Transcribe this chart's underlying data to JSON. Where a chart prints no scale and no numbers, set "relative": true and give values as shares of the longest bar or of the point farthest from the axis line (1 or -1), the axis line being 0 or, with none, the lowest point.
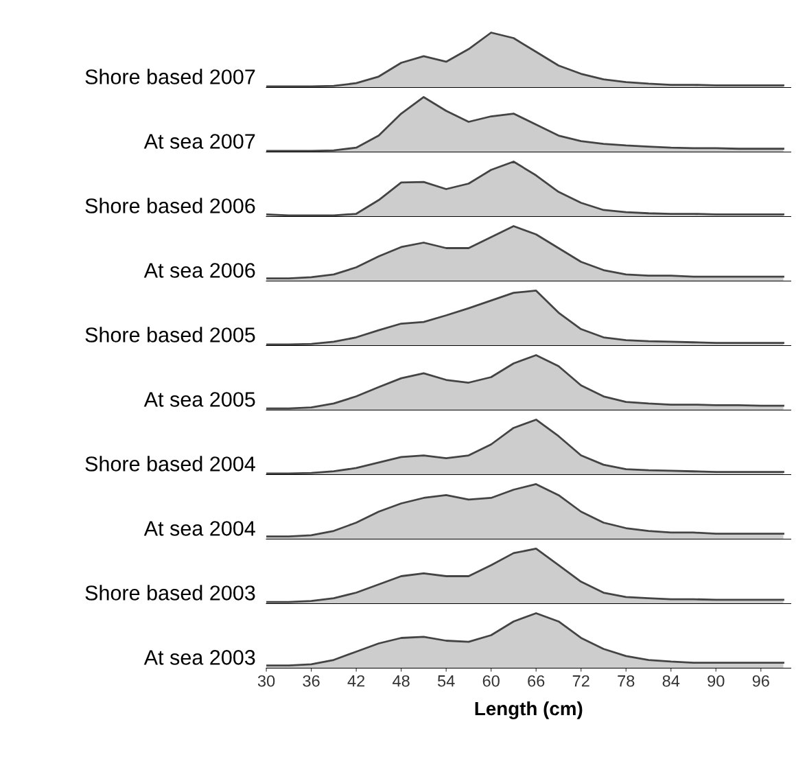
{
  "chart_data": [
    {
      "type": "area",
      "relative": true,
      "ylabel": "Shore based 2007",
      "x": [
        30,
        33,
        36,
        39,
        42,
        45,
        48,
        51,
        54,
        57,
        60,
        63,
        66,
        69,
        72,
        75,
        78,
        81,
        84,
        87,
        90,
        93,
        96,
        99
      ],
      "xlim": [
        30,
        100
      ],
      "tick_labels": false,
      "series": [
        {
          "color": "#c8c8c8",
          "values": [
            0.02,
            0.02,
            0.02,
            0.03,
            0.08,
            0.2,
            0.45,
            0.57,
            0.47,
            0.7,
            1.0,
            0.9,
            0.65,
            0.4,
            0.25,
            0.15,
            0.1,
            0.07,
            0.05,
            0.05,
            0.04,
            0.04,
            0.04,
            0.04
          ]
        }
      ]
    },
    {
      "type": "area",
      "relative": true,
      "ylabel": "At sea 2007",
      "x": [
        30,
        33,
        36,
        39,
        42,
        45,
        48,
        51,
        54,
        57,
        60,
        63,
        66,
        69,
        72,
        75,
        78,
        81,
        84,
        87,
        90,
        93,
        96,
        99
      ],
      "xlim": [
        30,
        100
      ],
      "tick_labels": false,
      "series": [
        {
          "color": "#c8c8c8",
          "values": [
            0.02,
            0.02,
            0.02,
            0.03,
            0.08,
            0.3,
            0.7,
            1.0,
            0.75,
            0.55,
            0.65,
            0.7,
            0.5,
            0.3,
            0.2,
            0.15,
            0.12,
            0.1,
            0.08,
            0.07,
            0.07,
            0.06,
            0.06,
            0.06
          ]
        }
      ]
    },
    {
      "type": "area",
      "relative": true,
      "ylabel": "Shore based 2006",
      "x": [
        30,
        33,
        36,
        39,
        42,
        45,
        48,
        51,
        54,
        57,
        60,
        63,
        66,
        69,
        72,
        75,
        78,
        81,
        84,
        87,
        90,
        93,
        96,
        99
      ],
      "xlim": [
        30,
        100
      ],
      "tick_labels": false,
      "series": [
        {
          "color": "#c8c8c8",
          "values": [
            0.04,
            0.02,
            0.02,
            0.02,
            0.05,
            0.3,
            0.62,
            0.63,
            0.5,
            0.6,
            0.85,
            1.0,
            0.75,
            0.45,
            0.25,
            0.12,
            0.08,
            0.06,
            0.05,
            0.05,
            0.04,
            0.04,
            0.04,
            0.04
          ]
        }
      ]
    },
    {
      "type": "area",
      "relative": true,
      "ylabel": "At sea 2006",
      "x": [
        30,
        33,
        36,
        39,
        42,
        45,
        48,
        51,
        54,
        57,
        60,
        63,
        66,
        69,
        72,
        75,
        78,
        81,
        84,
        87,
        90,
        93,
        96,
        99
      ],
      "xlim": [
        30,
        100
      ],
      "tick_labels": false,
      "series": [
        {
          "color": "#c8c8c8",
          "values": [
            0.05,
            0.05,
            0.07,
            0.12,
            0.25,
            0.45,
            0.62,
            0.7,
            0.6,
            0.6,
            0.8,
            1.0,
            0.85,
            0.6,
            0.35,
            0.2,
            0.12,
            0.1,
            0.1,
            0.08,
            0.08,
            0.08,
            0.08,
            0.08
          ]
        }
      ]
    },
    {
      "type": "area",
      "relative": true,
      "ylabel": "Shore based 2005",
      "x": [
        30,
        33,
        36,
        39,
        42,
        45,
        48,
        51,
        54,
        57,
        60,
        63,
        66,
        69,
        72,
        75,
        78,
        81,
        84,
        87,
        90,
        93,
        96,
        99
      ],
      "xlim": [
        30,
        100
      ],
      "tick_labels": false,
      "series": [
        {
          "color": "#c8c8c8",
          "values": [
            0.02,
            0.02,
            0.03,
            0.07,
            0.15,
            0.28,
            0.4,
            0.43,
            0.55,
            0.68,
            0.82,
            0.96,
            1.0,
            0.6,
            0.3,
            0.15,
            0.1,
            0.08,
            0.07,
            0.06,
            0.05,
            0.05,
            0.05,
            0.05
          ]
        }
      ]
    },
    {
      "type": "area",
      "relative": true,
      "ylabel": "At sea 2005",
      "x": [
        30,
        33,
        36,
        39,
        42,
        45,
        48,
        51,
        54,
        57,
        60,
        63,
        66,
        69,
        72,
        75,
        78,
        81,
        84,
        87,
        90,
        93,
        96,
        99
      ],
      "xlim": [
        30,
        100
      ],
      "tick_labels": false,
      "series": [
        {
          "color": "#c8c8c8",
          "values": [
            0.03,
            0.03,
            0.05,
            0.12,
            0.25,
            0.42,
            0.58,
            0.67,
            0.55,
            0.5,
            0.6,
            0.85,
            1.0,
            0.8,
            0.45,
            0.25,
            0.15,
            0.12,
            0.1,
            0.1,
            0.09,
            0.09,
            0.08,
            0.08
          ]
        }
      ]
    },
    {
      "type": "area",
      "relative": true,
      "ylabel": "Shore based 2004",
      "x": [
        30,
        33,
        36,
        39,
        42,
        45,
        48,
        51,
        54,
        57,
        60,
        63,
        66,
        69,
        72,
        75,
        78,
        81,
        84,
        87,
        90,
        93,
        96,
        99
      ],
      "xlim": [
        30,
        100
      ],
      "tick_labels": false,
      "series": [
        {
          "color": "#c8c8c8",
          "values": [
            0.02,
            0.02,
            0.03,
            0.06,
            0.12,
            0.22,
            0.32,
            0.35,
            0.3,
            0.35,
            0.55,
            0.85,
            1.0,
            0.7,
            0.35,
            0.18,
            0.1,
            0.08,
            0.07,
            0.06,
            0.05,
            0.05,
            0.05,
            0.05
          ]
        }
      ]
    },
    {
      "type": "area",
      "relative": true,
      "ylabel": "At sea 2004",
      "x": [
        30,
        33,
        36,
        39,
        42,
        45,
        48,
        51,
        54,
        57,
        60,
        63,
        66,
        69,
        72,
        75,
        78,
        81,
        84,
        87,
        90,
        93,
        96,
        99
      ],
      "xlim": [
        30,
        100
      ],
      "tick_labels": false,
      "series": [
        {
          "color": "#c8c8c8",
          "values": [
            0.05,
            0.05,
            0.07,
            0.15,
            0.3,
            0.5,
            0.65,
            0.75,
            0.8,
            0.72,
            0.75,
            0.9,
            1.0,
            0.8,
            0.5,
            0.3,
            0.2,
            0.15,
            0.12,
            0.12,
            0.1,
            0.1,
            0.1,
            0.1
          ]
        }
      ]
    },
    {
      "type": "area",
      "relative": true,
      "ylabel": "Shore based 2003",
      "x": [
        30,
        33,
        36,
        39,
        42,
        45,
        48,
        51,
        54,
        57,
        60,
        63,
        66,
        69,
        72,
        75,
        78,
        81,
        84,
        87,
        90,
        93,
        96,
        99
      ],
      "xlim": [
        30,
        100
      ],
      "tick_labels": false,
      "series": [
        {
          "color": "#c8c8c8",
          "values": [
            0.03,
            0.03,
            0.05,
            0.1,
            0.2,
            0.35,
            0.5,
            0.55,
            0.5,
            0.5,
            0.7,
            0.92,
            1.0,
            0.7,
            0.4,
            0.2,
            0.12,
            0.1,
            0.08,
            0.08,
            0.07,
            0.07,
            0.07,
            0.07
          ]
        }
      ]
    },
    {
      "type": "area",
      "relative": true,
      "ylabel": "At sea 2003",
      "xlabel": "Length (cm)",
      "x": [
        30,
        33,
        36,
        39,
        42,
        45,
        48,
        51,
        54,
        57,
        60,
        63,
        66,
        69,
        72,
        75,
        78,
        81,
        84,
        87,
        90,
        93,
        96,
        99
      ],
      "xlim": [
        30,
        100
      ],
      "xticks": [
        30,
        36,
        42,
        48,
        54,
        60,
        66,
        72,
        78,
        84,
        90,
        96
      ],
      "tick_labels": "x",
      "series": [
        {
          "color": "#c8c8c8",
          "values": [
            0.05,
            0.05,
            0.07,
            0.15,
            0.3,
            0.45,
            0.55,
            0.57,
            0.5,
            0.48,
            0.6,
            0.85,
            1.0,
            0.85,
            0.55,
            0.35,
            0.22,
            0.15,
            0.12,
            0.1,
            0.1,
            0.1,
            0.1,
            0.1
          ]
        }
      ]
    }
  ]
}
